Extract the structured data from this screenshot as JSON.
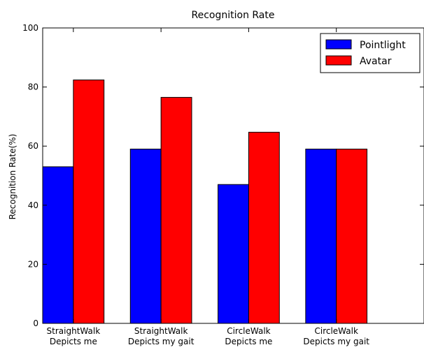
{
  "chart_data": {
    "type": "bar",
    "title": "Recognition Rate",
    "xlabel": "",
    "ylabel": "Recognition Rate(%)",
    "ylim": [
      0,
      100
    ],
    "yticks": [
      0,
      20,
      40,
      60,
      80,
      100
    ],
    "categories": [
      [
        "StraightWalk",
        "Depicts me"
      ],
      [
        "StraightWalk",
        "Depicts my gait"
      ],
      [
        "CircleWalk",
        "Depicts me"
      ],
      [
        "CircleWalk",
        "Depicts my gait"
      ]
    ],
    "series": [
      {
        "name": "Pointlight",
        "color": "#0000ff",
        "values": [
          53,
          59,
          47,
          59
        ]
      },
      {
        "name": "Avatar",
        "color": "#ff0000",
        "values": [
          82.4,
          76.5,
          64.7,
          59
        ]
      }
    ],
    "grid": false,
    "legend": "top-right"
  }
}
